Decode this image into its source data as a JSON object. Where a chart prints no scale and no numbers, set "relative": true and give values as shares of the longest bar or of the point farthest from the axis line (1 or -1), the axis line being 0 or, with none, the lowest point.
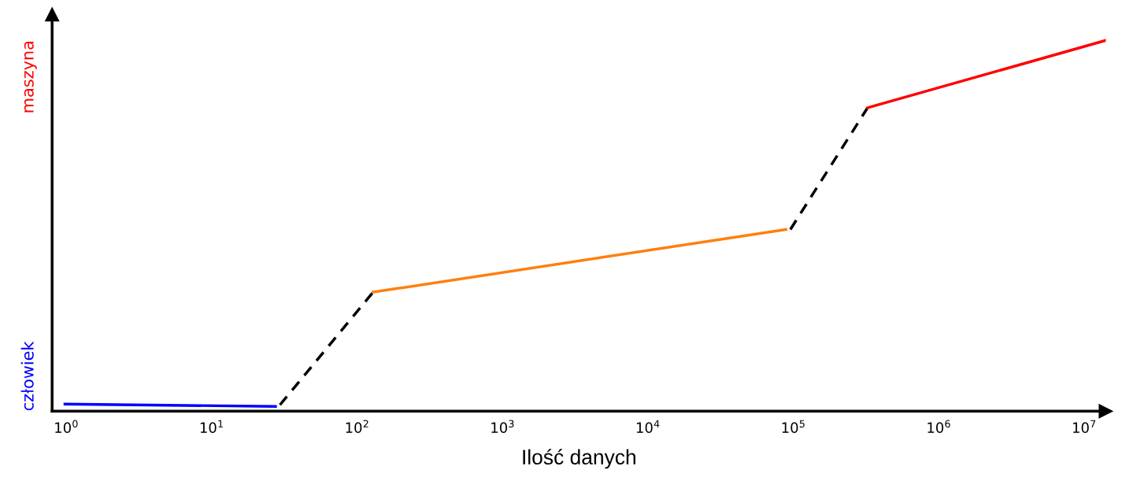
{
  "chart_data": {
    "type": "line",
    "xlabel": "Ilość danych",
    "log": "x",
    "relative": true,
    "tick_labels": "x",
    "grid": false,
    "legend": false,
    "marker": "none",
    "xlim": [
      0.8,
      14100000
    ],
    "xticks": [
      {
        "value": 1,
        "label": "10$^{0}$"
      },
      {
        "value": 10,
        "label": "10$^{1}$"
      },
      {
        "value": 100,
        "label": "10$^{2}$"
      },
      {
        "value": 1000,
        "label": "10$^{3}$"
      },
      {
        "value": 10000,
        "label": "10$^{4}$"
      },
      {
        "value": 100000,
        "label": "10$^{5}$"
      },
      {
        "value": 1000000,
        "label": "10$^{6}$"
      },
      {
        "value": 10000000,
        "label": "10$^{7}$"
      }
    ],
    "annotations": [
      "człowiek",
      "maszyna"
    ],
    "series": [
      {
        "color": "#0000ff",
        "line_style": "solid",
        "x": [
          0.98,
          27.5
        ],
        "values": [
          0.019,
          0.013
        ]
      },
      {
        "color": "#000000",
        "line_style": "dashed",
        "x": [
          29.5,
          129
        ],
        "values": [
          0.017,
          0.321
        ]
      },
      {
        "color": "#ff7f0e",
        "line_style": "solid",
        "x": [
          129,
          89000
        ],
        "values": [
          0.321,
          0.49
        ]
      },
      {
        "color": "#000000",
        "line_style": "dashed",
        "x": [
          95500,
          324000
        ],
        "values": [
          0.49,
          0.818
        ]
      },
      {
        "color": "#ff0000",
        "line_style": "solid",
        "x": [
          324000,
          14100000
        ],
        "values": [
          0.818,
          1.0
        ]
      }
    ]
  }
}
